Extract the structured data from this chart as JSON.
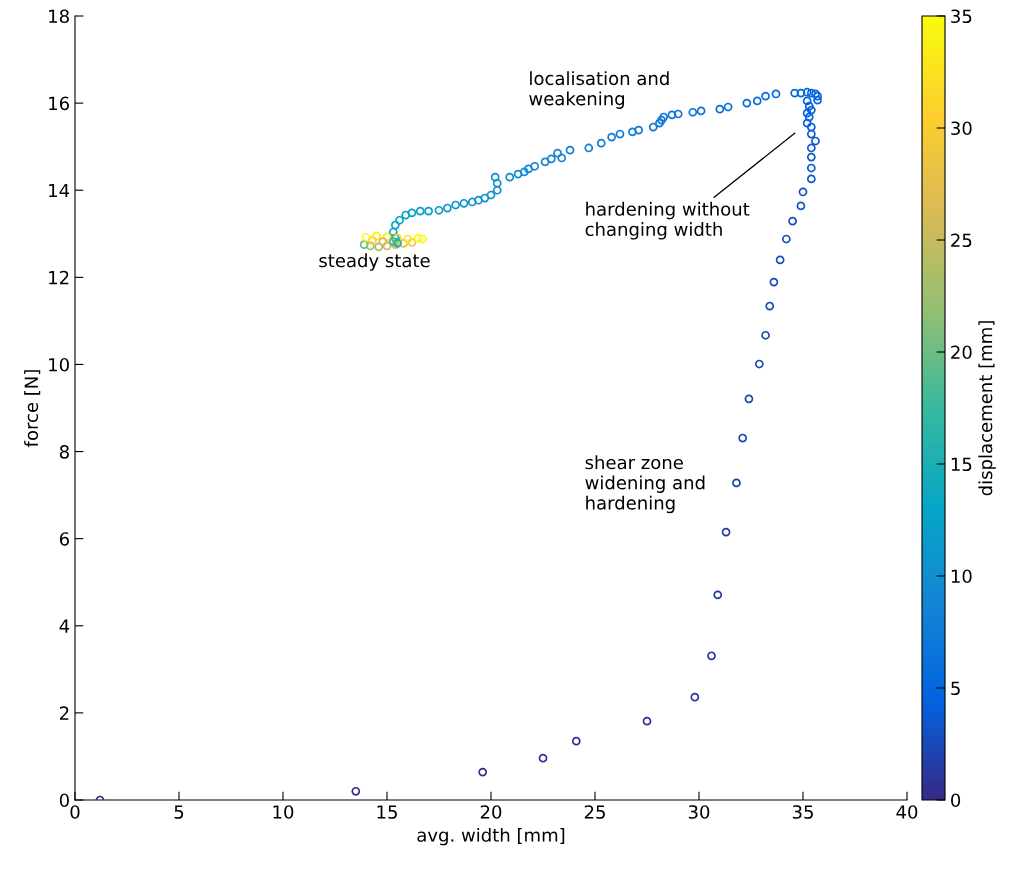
{
  "chart_data": {
    "type": "scatter",
    "xlabel": "avg. width [mm]",
    "ylabel": "force [N]",
    "clabel": "displacement [mm]",
    "xlim": [
      0,
      40
    ],
    "xticks": [
      0,
      5,
      10,
      15,
      20,
      25,
      30,
      35,
      40
    ],
    "ylim": [
      0,
      18
    ],
    "yticks": [
      0,
      2,
      4,
      6,
      8,
      10,
      12,
      14,
      16,
      18
    ],
    "clim": [
      0,
      35
    ],
    "cticks": [
      0,
      5,
      10,
      15,
      20,
      25,
      30,
      35
    ],
    "marker": "circle",
    "grid": false,
    "x": [
      1.2,
      13.5,
      19.6,
      22.5,
      24.1,
      27.5,
      29.8,
      30.6,
      30.9,
      31.3,
      31.8,
      32.1,
      32.4,
      32.9,
      33.2,
      33.4,
      33.6,
      33.9,
      34.2,
      34.5,
      34.9,
      35.0,
      35.4,
      35.4,
      35.4,
      35.4,
      35.6,
      35.4,
      35.4,
      35.2,
      35.3,
      35.2,
      35.4,
      35.3,
      35.2,
      35.7,
      35.7,
      35.6,
      35.4,
      35.2,
      34.9,
      34.6,
      33.7,
      33.2,
      32.8,
      32.3,
      31.4,
      31.0,
      30.1,
      29.7,
      29.0,
      28.7,
      28.3,
      28.2,
      28.1,
      27.8,
      27.1,
      26.8,
      26.2,
      25.8,
      25.3,
      24.7,
      23.8,
      23.4,
      23.2,
      22.9,
      22.6,
      22.1,
      21.8,
      21.6,
      21.3,
      20.9,
      20.2,
      20.3,
      20.3,
      20.0,
      19.7,
      19.4,
      19.1,
      18.7,
      18.3,
      17.9,
      17.5,
      17.0,
      16.6,
      16.2,
      15.9,
      15.6,
      15.4,
      15.3,
      15.4,
      15.5,
      13.9,
      14.2,
      14.6,
      15.0,
      15.4,
      15.8,
      16.2,
      14.0,
      14.5,
      15.0,
      15.5,
      16.0,
      16.5,
      16.7,
      14.3,
      14.8,
      15.3,
      15.5
    ],
    "values": [
      0,
      0.2,
      0.64,
      0.96,
      1.35,
      1.81,
      2.36,
      3.31,
      4.71,
      6.15,
      7.28,
      8.31,
      9.21,
      10.01,
      10.67,
      11.34,
      11.89,
      12.4,
      12.88,
      13.29,
      13.64,
      13.96,
      14.26,
      14.51,
      14.76,
      14.97,
      15.13,
      15.29,
      15.45,
      15.54,
      15.68,
      15.77,
      15.84,
      15.93,
      16.05,
      16.07,
      16.16,
      16.21,
      16.23,
      16.25,
      16.23,
      16.23,
      16.21,
      16.16,
      16.05,
      16.0,
      15.91,
      15.86,
      15.82,
      15.79,
      15.75,
      15.73,
      15.68,
      15.61,
      15.54,
      15.45,
      15.38,
      15.34,
      15.29,
      15.22,
      15.08,
      14.97,
      14.92,
      14.74,
      14.85,
      14.72,
      14.65,
      14.55,
      14.49,
      14.42,
      14.37,
      14.3,
      14.3,
      14.16,
      14.0,
      13.89,
      13.82,
      13.77,
      13.73,
      13.7,
      13.66,
      13.59,
      13.54,
      13.52,
      13.52,
      13.48,
      13.43,
      13.31,
      13.2,
      13.04,
      12.9,
      12.81,
      12.75,
      12.72,
      12.7,
      12.72,
      12.75,
      12.78,
      12.8,
      12.92,
      12.95,
      12.93,
      12.9,
      12.88,
      12.9,
      12.88,
      12.85,
      12.82,
      12.82,
      12.78
    ],
    "cvalues": [
      0,
      0.1,
      0.3,
      0.4,
      0.5,
      0.7,
      0.9,
      1.1,
      1.3,
      1.5,
      1.7,
      1.9,
      2.0,
      2.2,
      2.3,
      2.5,
      2.6,
      2.8,
      2.9,
      3.0,
      3.2,
      3.3,
      3.4,
      3.5,
      3.6,
      3.7,
      3.8,
      3.9,
      4.0,
      4.1,
      4.2,
      4.3,
      4.4,
      4.5,
      4.6,
      4.7,
      4.8,
      4.9,
      5.0,
      5.1,
      5.2,
      5.3,
      5.4,
      5.5,
      5.6,
      5.7,
      5.9,
      6.0,
      6.2,
      6.3,
      6.5,
      6.6,
      6.8,
      6.9,
      7.0,
      7.2,
      7.3,
      7.5,
      7.6,
      7.8,
      7.9,
      8.1,
      8.3,
      8.5,
      8.6,
      8.8,
      8.9,
      9.0,
      9.1,
      9.2,
      9.3,
      9.5,
      9.6,
      9.8,
      10.0,
      10.2,
      10.4,
      10.6,
      10.8,
      11.0,
      11.2,
      11.4,
      11.6,
      11.8,
      12.0,
      12.2,
      12.4,
      12.7,
      13.0,
      13.4,
      13.8,
      14.2,
      20,
      22,
      23,
      25,
      27,
      28,
      29,
      35,
      34,
      33,
      32,
      33,
      35,
      35,
      31,
      26,
      18,
      16
    ],
    "annotations": [
      "localisation and\nweakening",
      "hardening without\nchanging width",
      "steady state",
      "shear zone\nwidening and\nhardening"
    ]
  }
}
